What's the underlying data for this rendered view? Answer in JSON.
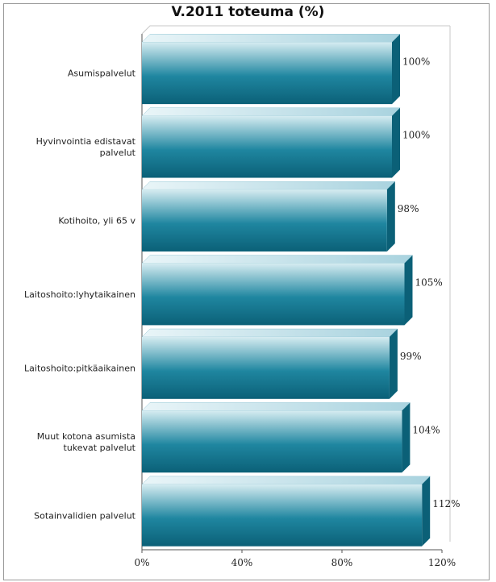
{
  "chart_data": {
    "type": "bar",
    "orientation": "horizontal",
    "title": "V.2011 toteuma (%)",
    "categories": [
      "Asumispalvelut",
      "Hyvinvointia edistavat palvelut",
      "Kotihoito, yli 65 v",
      "Laitoshoito:lyhytaikainen",
      "Laitoshoito:pitkäaikainen",
      "Muut kotona asumista tukevat palvelut",
      "Sotainvalidien palvelut"
    ],
    "category_lines": [
      [
        "Asumispalvelut"
      ],
      [
        "Hyvinvointia edistavat",
        "palvelut"
      ],
      [
        "Kotihoito, yli 65 v"
      ],
      [
        "Laitoshoito:lyhytaikainen"
      ],
      [
        "Laitoshoito:pitkäaikainen"
      ],
      [
        "Muut kotona asumista",
        "tukevat palvelut"
      ],
      [
        "Sotainvalidien palvelut"
      ]
    ],
    "values": [
      100,
      100,
      98,
      105,
      99,
      104,
      112
    ],
    "value_labels": [
      "100%",
      "100%",
      "98%",
      "105%",
      "99%",
      "104%",
      "112%"
    ],
    "xlim": [
      0,
      120
    ],
    "xticks": [
      0,
      40,
      80,
      120
    ],
    "xtick_labels": [
      "0%",
      "40%",
      "80%",
      "120%"
    ],
    "xlabel": "",
    "ylabel": "",
    "grid": false,
    "bar_color": "#1f86a0",
    "bar_color_light": "#d6ecf1",
    "bar_color_dark": "#0b6077"
  }
}
